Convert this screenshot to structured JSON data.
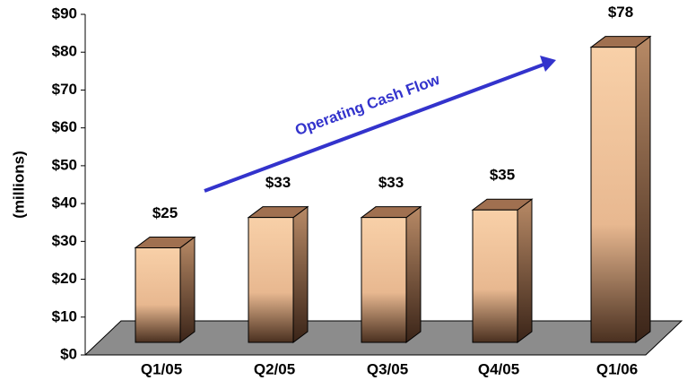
{
  "chart_data": {
    "type": "bar",
    "y_label": "(millions)",
    "annotation": "Operating Cash Flow",
    "categories": [
      "Q1/05",
      "Q2/05",
      "Q3/05",
      "Q4/05",
      "Q1/06"
    ],
    "values": [
      25,
      33,
      33,
      35,
      78
    ],
    "value_labels": [
      "$25",
      "$33",
      "$33",
      "$35",
      "$78"
    ],
    "color": "#f6c9a0",
    "ylim": [
      0,
      90
    ],
    "yticks": [
      {
        "value": 0,
        "label": "$0"
      },
      {
        "value": 10,
        "label": "$10"
      },
      {
        "value": 20,
        "label": "$20"
      },
      {
        "value": 30,
        "label": "$30"
      },
      {
        "value": 40,
        "label": "$40"
      },
      {
        "value": 50,
        "label": "$50"
      },
      {
        "value": 60,
        "label": "$60"
      },
      {
        "value": 70,
        "label": "$70"
      },
      {
        "value": 80,
        "label": "$80"
      },
      {
        "value": 90,
        "label": "$90"
      }
    ]
  }
}
